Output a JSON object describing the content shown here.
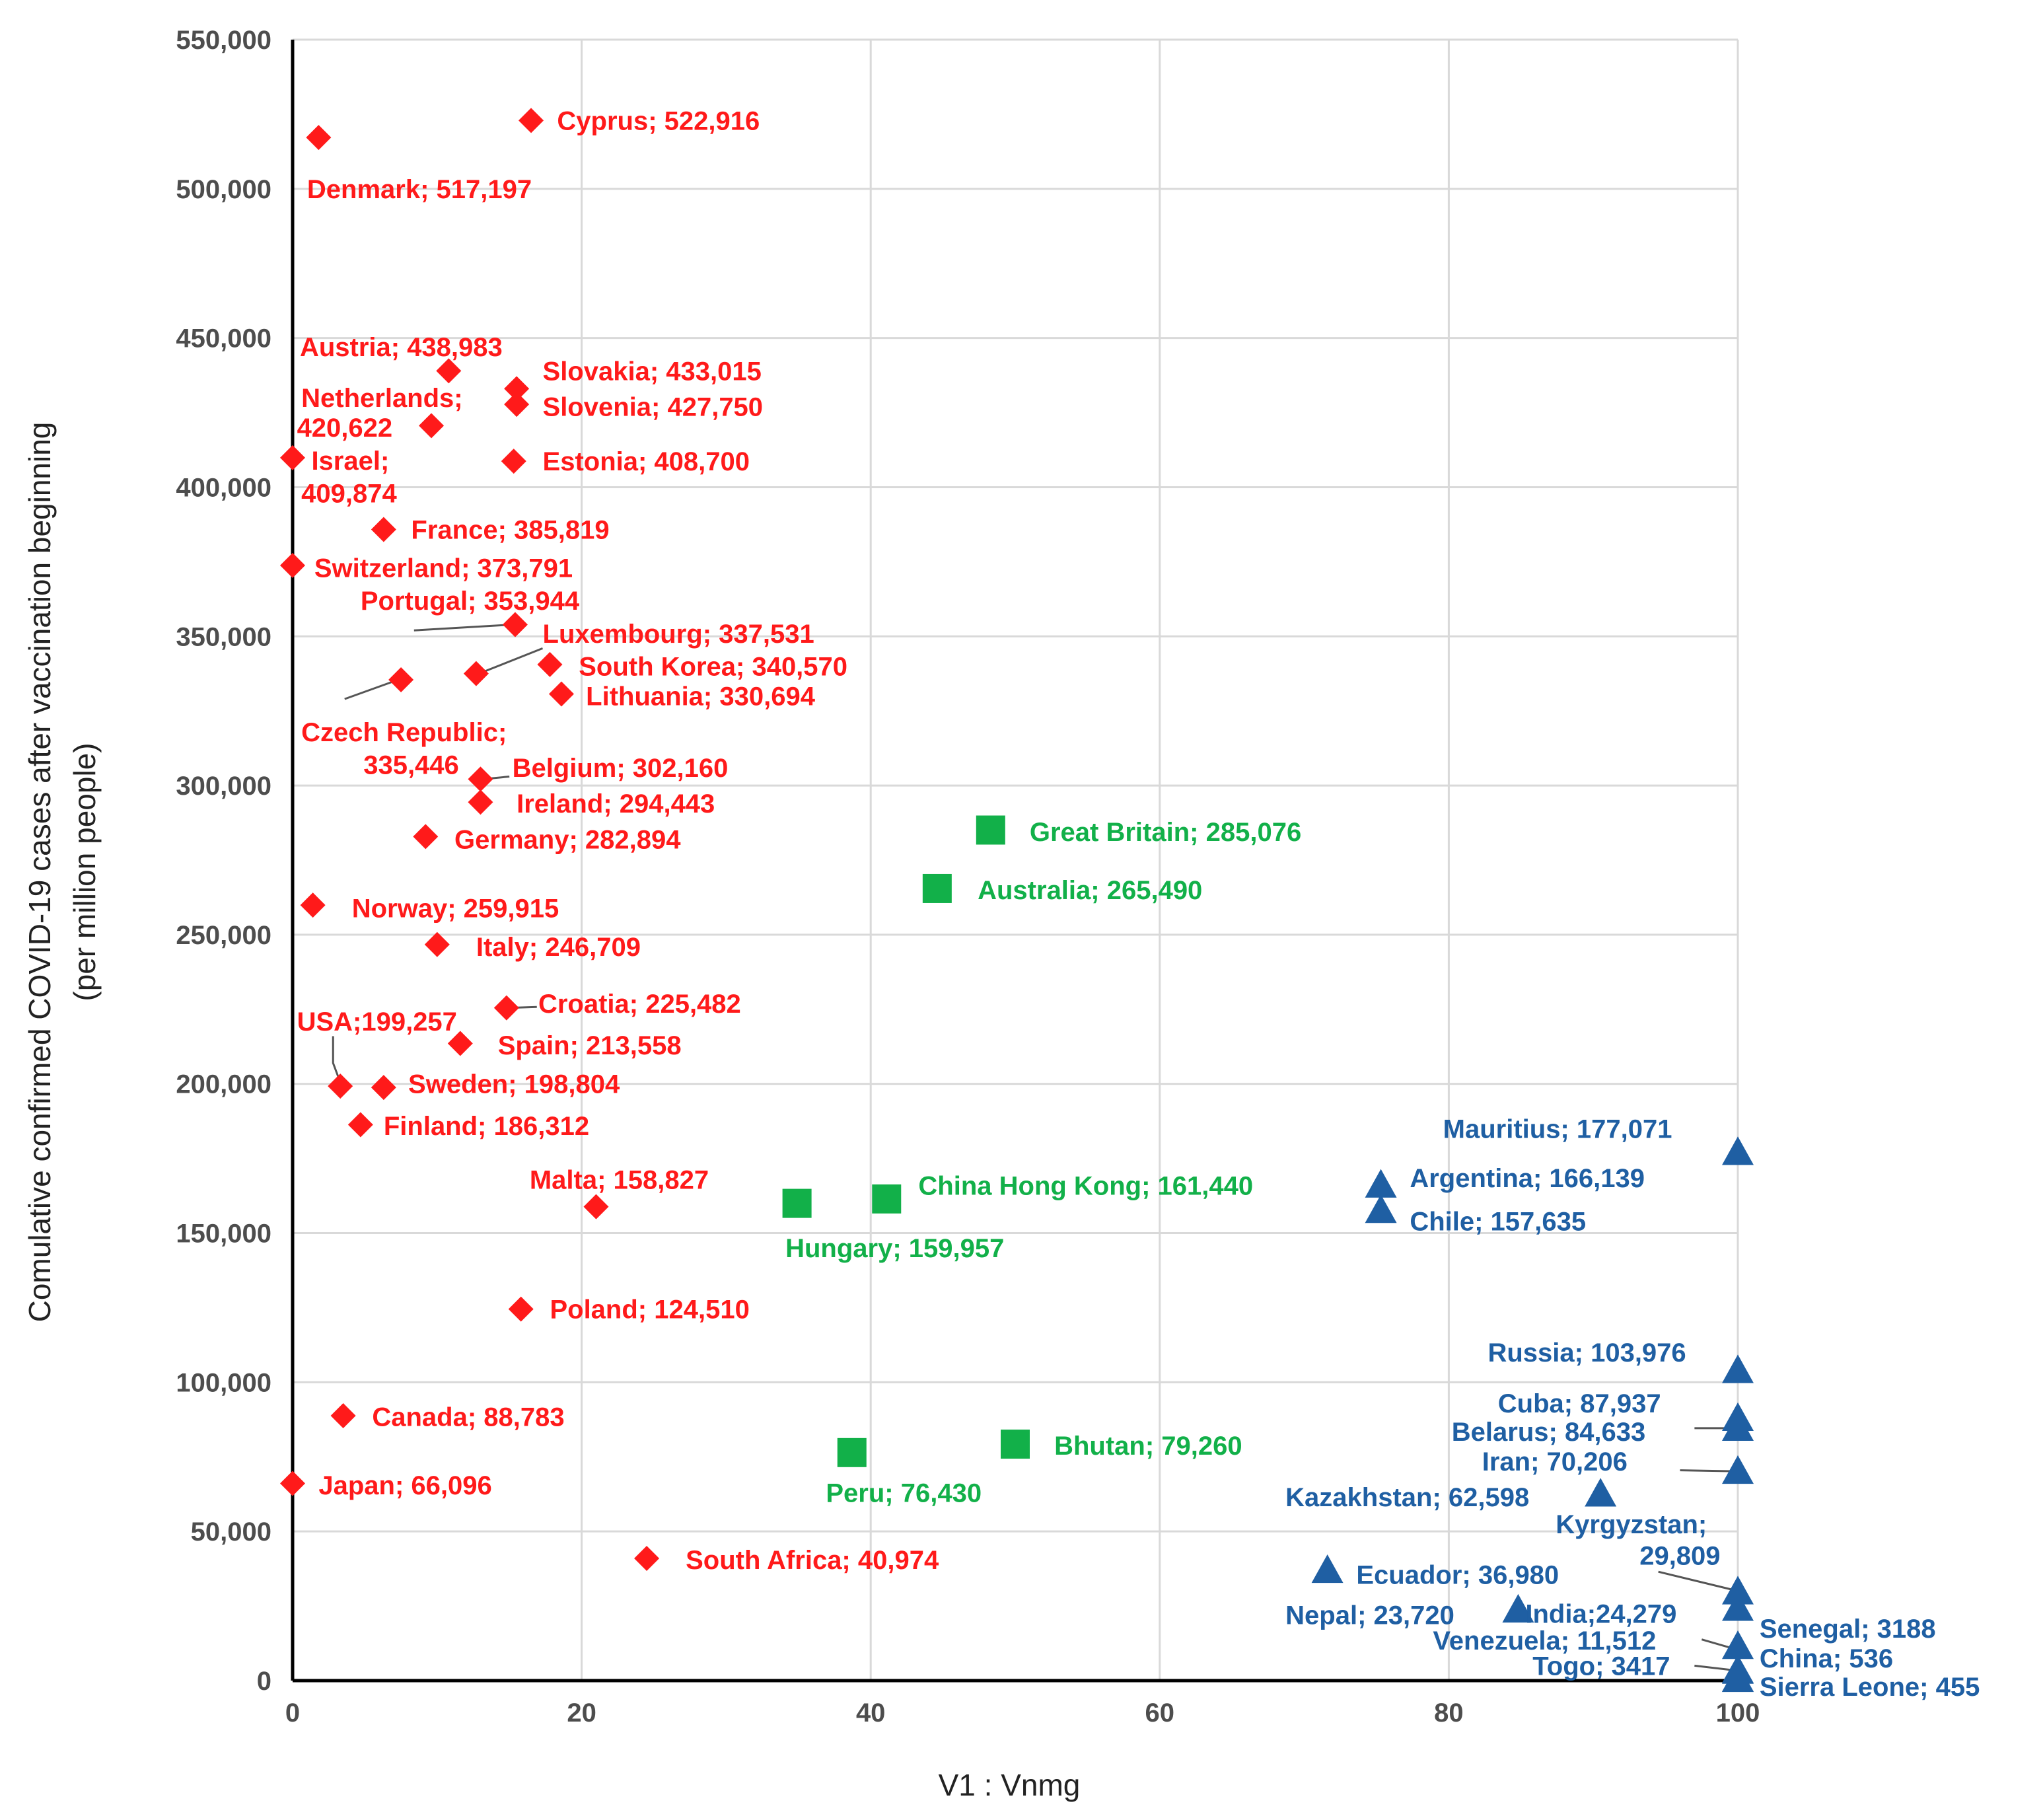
{
  "chart_data": {
    "type": "scatter",
    "title": "",
    "xlabel": "V1 : Vnmg",
    "ylabel_lines": [
      "Comulative confirmed COVID-19 cases after vaccination beginning",
      "(per million people)"
    ],
    "xlim": [
      0,
      100
    ],
    "ylim": [
      0,
      550000
    ],
    "grid": true,
    "x_ticks": [
      0,
      20,
      40,
      60,
      80,
      100
    ],
    "x_tick_labels": [
      "0",
      "20",
      "40",
      "60",
      "80",
      "100"
    ],
    "y_ticks": [
      0,
      50000,
      100000,
      150000,
      200000,
      250000,
      300000,
      350000,
      400000,
      450000,
      500000,
      550000
    ],
    "y_tick_labels": [
      "0",
      "50,000",
      "100,000",
      "150,000",
      "200,000",
      "250,000",
      "300,000",
      "350,000",
      "400,000",
      "450,000",
      "500,000",
      "550,000"
    ],
    "series": [
      {
        "name": "group-red",
        "marker": "diamond",
        "color": "#ff1a1a",
        "points": [
          {
            "x": 16.5,
            "y": 522916,
            "label": "Cyprus; 522,916",
            "lx": 18.3,
            "ly": 522916
          },
          {
            "x": 1.8,
            "y": 517197,
            "label": "Denmark; 517,197",
            "lx": 1.0,
            "ly": 500000
          },
          {
            "x": 10.8,
            "y": 438983,
            "label": "Austria; 438,983",
            "lx": 0.5,
            "ly": 447000
          },
          {
            "x": 15.5,
            "y": 433015,
            "label": "Slovakia; 433,015",
            "lx": 17.3,
            "ly": 439000
          },
          {
            "x": 15.5,
            "y": 427750,
            "label": "Slovenia; 427,750",
            "lx": 17.3,
            "ly": 427000
          },
          {
            "x": 9.6,
            "y": 420622,
            "label": "Netherlands;",
            "lx": 0.6,
            "ly": 430000
          },
          {
            "x": 9.6,
            "y": 420622,
            "label": "420,622",
            "lx": 0.3,
            "ly": 420000
          },
          {
            "x": 15.3,
            "y": 408700,
            "label": "Estonia; 408,700",
            "lx": 17.3,
            "ly": 408700
          },
          {
            "x": 0.0,
            "y": 409874,
            "label": "Israel;",
            "lx": 1.3,
            "ly": 409000
          },
          {
            "x": 0.0,
            "y": 409874,
            "label": "409,874",
            "lx": 0.6,
            "ly": 398000
          },
          {
            "x": 6.3,
            "y": 385819,
            "label": "France; 385,819",
            "lx": 8.2,
            "ly": 385819
          },
          {
            "x": 0.0,
            "y": 373791,
            "label": "Switzerland; 373,791",
            "lx": 1.5,
            "ly": 373000
          },
          {
            "x": 15.4,
            "y": 353944,
            "label": "Portugal; 353,944",
            "lx": 4.7,
            "ly": 362000
          },
          {
            "x": 12.7,
            "y": 337531,
            "label": "Luxembourg; 337,531",
            "lx": 17.3,
            "ly": 351000
          },
          {
            "x": 17.8,
            "y": 340570,
            "label": "South Korea; 340,570",
            "lx": 19.8,
            "ly": 340000
          },
          {
            "x": 18.6,
            "y": 330694,
            "label": "Lithuania; 330,694",
            "lx": 20.3,
            "ly": 330000
          },
          {
            "x": 7.5,
            "y": 335446,
            "label": "Czech Republic;",
            "lx": 0.6,
            "ly": 318000
          },
          {
            "x": 7.5,
            "y": 335446,
            "label": "335,446",
            "lx": 4.9,
            "ly": 307000
          },
          {
            "x": 13.0,
            "y": 302160,
            "label": "Belgium; 302,160",
            "lx": 15.2,
            "ly": 306000
          },
          {
            "x": 13.0,
            "y": 294443,
            "label": "Ireland; 294,443",
            "lx": 15.5,
            "ly": 294000
          },
          {
            "x": 9.2,
            "y": 282894,
            "label": "Germany; 282,894",
            "lx": 11.2,
            "ly": 282000
          },
          {
            "x": 1.4,
            "y": 259915,
            "label": "Norway; 259,915",
            "lx": 4.1,
            "ly": 259000
          },
          {
            "x": 10.0,
            "y": 246709,
            "label": "Italy; 246,709",
            "lx": 12.7,
            "ly": 246000
          },
          {
            "x": 14.8,
            "y": 225482,
            "label": "Croatia; 225,482",
            "lx": 17.0,
            "ly": 227000
          },
          {
            "x": 11.6,
            "y": 213558,
            "label": "Spain; 213,558",
            "lx": 14.2,
            "ly": 213000
          },
          {
            "x": 3.3,
            "y": 199257,
            "label": "USA;199,257",
            "lx": 0.3,
            "ly": 221000
          },
          {
            "x": 6.3,
            "y": 198804,
            "label": "Sweden; 198,804",
            "lx": 8.0,
            "ly": 200000
          },
          {
            "x": 4.7,
            "y": 186312,
            "label": "Finland; 186,312",
            "lx": 6.3,
            "ly": 186000
          },
          {
            "x": 21.0,
            "y": 158827,
            "label": "Malta; 158,827",
            "lx": 16.4,
            "ly": 168000
          },
          {
            "x": 15.8,
            "y": 124510,
            "label": "Poland; 124,510",
            "lx": 17.8,
            "ly": 124510
          },
          {
            "x": 3.5,
            "y": 88783,
            "label": "Canada; 88,783",
            "lx": 5.5,
            "ly": 88500
          },
          {
            "x": 0.0,
            "y": 66096,
            "label": "Japan; 66,096",
            "lx": 1.8,
            "ly": 65500
          },
          {
            "x": 24.5,
            "y": 40974,
            "label": "South Africa; 40,974",
            "lx": 27.2,
            "ly": 40500
          }
        ]
      },
      {
        "name": "group-green",
        "marker": "square",
        "color": "#12b049",
        "points": [
          {
            "x": 48.3,
            "y": 285076,
            "label": "Great Britain; 285,076",
            "lx": 51.0,
            "ly": 284500
          },
          {
            "x": 44.6,
            "y": 265490,
            "label": "Australia; 265,490",
            "lx": 47.4,
            "ly": 265000
          },
          {
            "x": 41.1,
            "y": 161440,
            "label": "China Hong Kong; 161,440",
            "lx": 43.3,
            "ly": 166000
          },
          {
            "x": 34.9,
            "y": 159957,
            "label": "Hungary; 159,957",
            "lx": 34.1,
            "ly": 145000
          },
          {
            "x": 50.0,
            "y": 79260,
            "label": "Bhutan; 79,260",
            "lx": 52.7,
            "ly": 78800
          },
          {
            "x": 38.7,
            "y": 76430,
            "label": "Peru; 76,430",
            "lx": 36.9,
            "ly": 63000
          }
        ]
      },
      {
        "name": "group-blue",
        "marker": "triangle",
        "color": "#1f5fa3",
        "points": [
          {
            "x": 100,
            "y": 177071,
            "label": "Mauritius; 177,071",
            "lx": 79.6,
            "ly": 185000
          },
          {
            "x": 75.3,
            "y": 166139,
            "label": "Argentina; 166,139",
            "lx": 77.3,
            "ly": 168500
          },
          {
            "x": 75.3,
            "y": 157635,
            "label": "Chile; 157,635",
            "lx": 77.3,
            "ly": 154000
          },
          {
            "x": 100,
            "y": 103976,
            "label": "Russia; 103,976",
            "lx": 82.7,
            "ly": 110000
          },
          {
            "x": 100,
            "y": 87937,
            "label": "Cuba; 87,937",
            "lx": 83.4,
            "ly": 93000
          },
          {
            "x": 100,
            "y": 84633,
            "label": "Belarus; 84,633",
            "lx": 80.2,
            "ly": 83500
          },
          {
            "x": 100,
            "y": 70206,
            "label": "Iran; 70,206",
            "lx": 82.3,
            "ly": 73500
          },
          {
            "x": 90.5,
            "y": 62598,
            "label": "Kazakhstan; 62,598",
            "lx": 68.7,
            "ly": 61500
          },
          {
            "x": 100,
            "y": 29809,
            "label": "Kyrgyzstan;",
            "lx": 87.4,
            "ly": 52500
          },
          {
            "x": 100,
            "y": 29809,
            "label": "29,809",
            "lx": 93.2,
            "ly": 42000
          },
          {
            "x": 71.6,
            "y": 36980,
            "label": "Ecuador; 36,980",
            "lx": 73.6,
            "ly": 35500
          },
          {
            "x": 84.8,
            "y": 23720,
            "label": "Nepal; 23,720",
            "lx": 68.7,
            "ly": 22000
          },
          {
            "x": 100,
            "y": 24279,
            "label": "India;24,279",
            "lx": 85.3,
            "ly": 22500
          },
          {
            "x": 100,
            "y": 3188,
            "label": "Senegal; 3188",
            "lx": 101.5,
            "ly": 17500
          },
          {
            "x": 100,
            "y": 11512,
            "label": "Venezuela; 11,512",
            "lx": 78.9,
            "ly": 13500
          },
          {
            "x": 100,
            "y": 536,
            "label": "China; 536",
            "lx": 101.5,
            "ly": 7500
          },
          {
            "x": 100,
            "y": 3417,
            "label": "Togo; 3417",
            "lx": 85.8,
            "ly": 5000
          },
          {
            "x": 100,
            "y": 455,
            "label": "Sierra Leone; 455",
            "lx": 101.5,
            "ly": -2000
          }
        ]
      }
    ],
    "leaders": [
      {
        "x1": 8.4,
        "y1": 352000,
        "x2": 15.2,
        "y2": 353944,
        "x3": 15.2,
        "y3": 353944
      },
      {
        "x1": 17.3,
        "y1": 346000,
        "x2": 12.9,
        "y2": 337531,
        "x3": 12.9,
        "y3": 337531
      },
      {
        "x1": 3.6,
        "y1": 329000,
        "x2": 7.3,
        "y2": 335446,
        "x3": 7.3,
        "y3": 335446
      },
      {
        "x1": 15.0,
        "y1": 303000,
        "x2": 13.2,
        "y2": 302160,
        "x3": 13.2,
        "y3": 302160
      },
      {
        "x1": 16.9,
        "y1": 225800,
        "x2": 15.0,
        "y2": 225482,
        "x3": 15.0,
        "y3": 225482
      },
      {
        "x1": 2.8,
        "y1": 216000,
        "x2": 2.8,
        "y2": 207000,
        "x3": 3.3,
        "y3": 200500
      },
      {
        "x1": 94.5,
        "y1": 36500,
        "x2": 99.6,
        "y2": 30500,
        "x3": 99.6,
        "y3": 30500
      },
      {
        "x1": 96.0,
        "y1": 70500,
        "x2": 99.5,
        "y2": 70200,
        "x3": 99.5,
        "y3": 70200
      },
      {
        "x1": 97.0,
        "y1": 84600,
        "x2": 99.5,
        "y2": 84600,
        "x3": 99.5,
        "y3": 84600
      },
      {
        "x1": 97.5,
        "y1": 13800,
        "x2": 99.5,
        "y2": 11000,
        "x3": 99.5,
        "y3": 11000
      },
      {
        "x1": 97.0,
        "y1": 5000,
        "x2": 99.5,
        "y2": 3600,
        "x3": 99.5,
        "y3": 3600
      }
    ]
  }
}
